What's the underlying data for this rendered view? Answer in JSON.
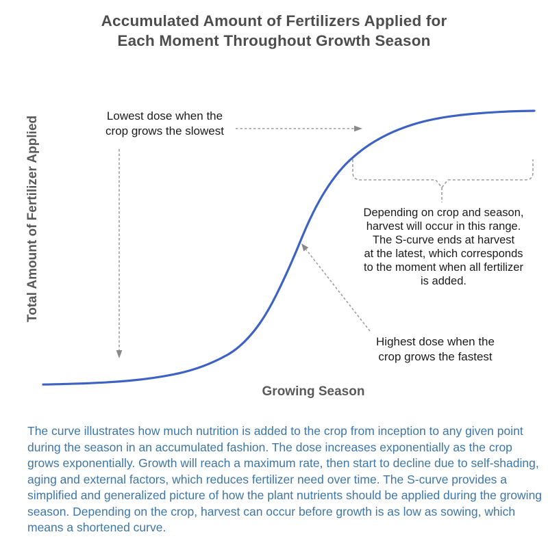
{
  "title": "Accumulated Amount of Fertilizers Applied for\nEach Moment Throughout Growth Season",
  "colors": {
    "curve": "#3d62c2",
    "dashed_annotations": "#9c9c9c",
    "arrowhead": "#8a8a8a",
    "title_text": "#4d4d4d",
    "axis_label_text": "#595959",
    "caption_text": "#3d76a7",
    "callout_text": "#1b1b1b",
    "background": "#ffffff"
  },
  "chart_data": {
    "type": "line",
    "title": "Accumulated Amount of Fertilizers Applied for Each Moment Throughout Growth Season",
    "xlabel": "Growing Season",
    "ylabel": "Total Amount of Fertilizer Applied",
    "grid": false,
    "axes_drawn": false,
    "legend": "none",
    "x_axis": {
      "range": [
        0,
        1
      ],
      "ticks": "none",
      "meaning": "fraction of growing season elapsed"
    },
    "y_axis": {
      "range": [
        0,
        1
      ],
      "ticks": "none",
      "meaning": "fraction of total fertilizer applied (accumulated)"
    },
    "series": [
      {
        "name": "accumulated-fertilizer-s-curve",
        "shape": "logistic S-curve",
        "color": "#3d62c2",
        "x": [
          0,
          0.05,
          0.1,
          0.15,
          0.2,
          0.25,
          0.3,
          0.35,
          0.4,
          0.45,
          0.5,
          0.55,
          0.6,
          0.65,
          0.7,
          0.75,
          0.8,
          0.85,
          0.9,
          0.95,
          1.0
        ],
        "y": [
          0.002,
          0.004,
          0.007,
          0.012,
          0.02,
          0.033,
          0.052,
          0.085,
          0.135,
          0.24,
          0.42,
          0.64,
          0.78,
          0.862,
          0.915,
          0.95,
          0.972,
          0.985,
          0.993,
          0.998,
          1.0
        ]
      }
    ],
    "annotations": [
      {
        "id": "lowest-dose",
        "text": "Lowest dose when the\ncrop grows the slowest",
        "arrows": [
          "dashed arrow right to flat top of curve",
          "dashed arrow down to flat start of curve"
        ]
      },
      {
        "id": "harvest-range",
        "text": "Depending on crop and season,\nharvest will occur in this range.\nThe S-curve ends at harvest\nat the latest, which corresponds\nto the moment when all fertilizer\nis added.",
        "marker": "dashed curly brace under the upper flat part of the curve"
      },
      {
        "id": "highest-dose",
        "text": "Highest dose when the\ncrop grows the fastest",
        "arrows": [
          "dashed arrow up-left to steepest part of curve"
        ]
      }
    ]
  },
  "caption": "The curve illustrates how much nutrition is added to the crop from inception to any given point during the season in an accumulated fashion. The dose increases exponentially as the crop grows exponentially. Growth will reach a maximum rate, then start to decline due to self-shading, aging and external factors, which reduces fertilizer need over time. The S-curve provides a simplified and generalized picture of how the plant nutrients should be applied during the growing season. Depending on the crop, harvest can occur before growth is as low as sowing, which means a shortened curve."
}
